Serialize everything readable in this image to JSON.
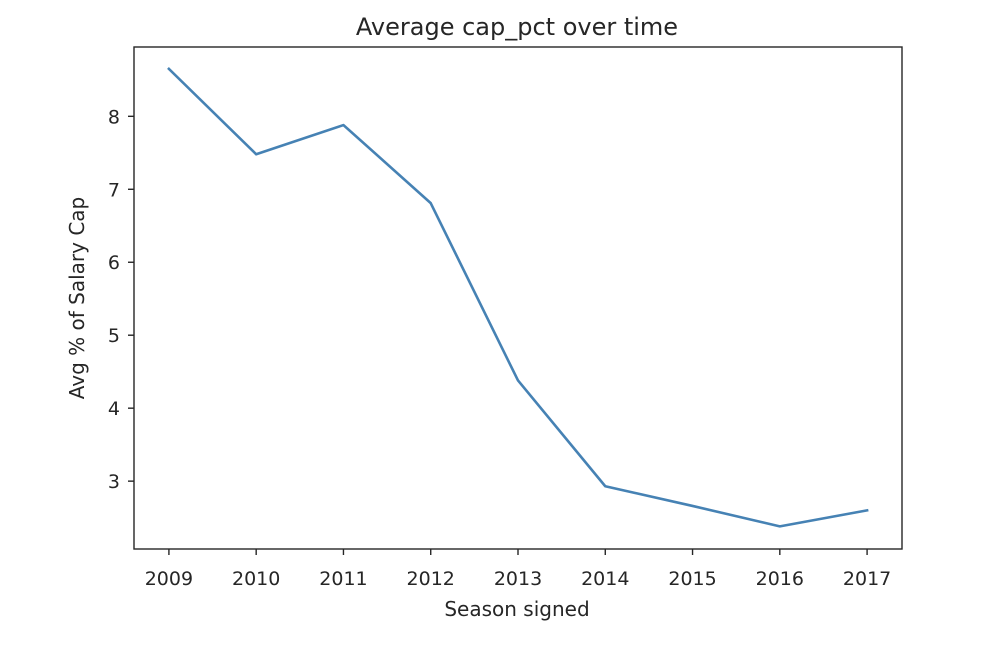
{
  "chart_data": {
    "type": "line",
    "title": "Average cap_pct over time",
    "xlabel": "Season signed",
    "ylabel": "Avg % of Salary Cap",
    "x": [
      2009,
      2010,
      2011,
      2012,
      2013,
      2014,
      2015,
      2016,
      2017
    ],
    "x_tick_labels": [
      "2009",
      "2010",
      "2011",
      "2012",
      "2013",
      "2014",
      "2015",
      "2016",
      "2017"
    ],
    "xlim": [
      2008.6,
      2017.4
    ],
    "y_ticks": [
      3,
      4,
      5,
      6,
      7,
      8
    ],
    "y_tick_labels": [
      "3",
      "4",
      "5",
      "6",
      "7",
      "8"
    ],
    "ylim": [
      2.07,
      8.95
    ],
    "grid": false,
    "legend": "none",
    "series": [
      {
        "values": [
          8.65,
          7.48,
          7.88,
          6.81,
          4.38,
          2.93,
          2.66,
          2.38,
          2.6
        ],
        "color": "#4682b4"
      }
    ]
  }
}
